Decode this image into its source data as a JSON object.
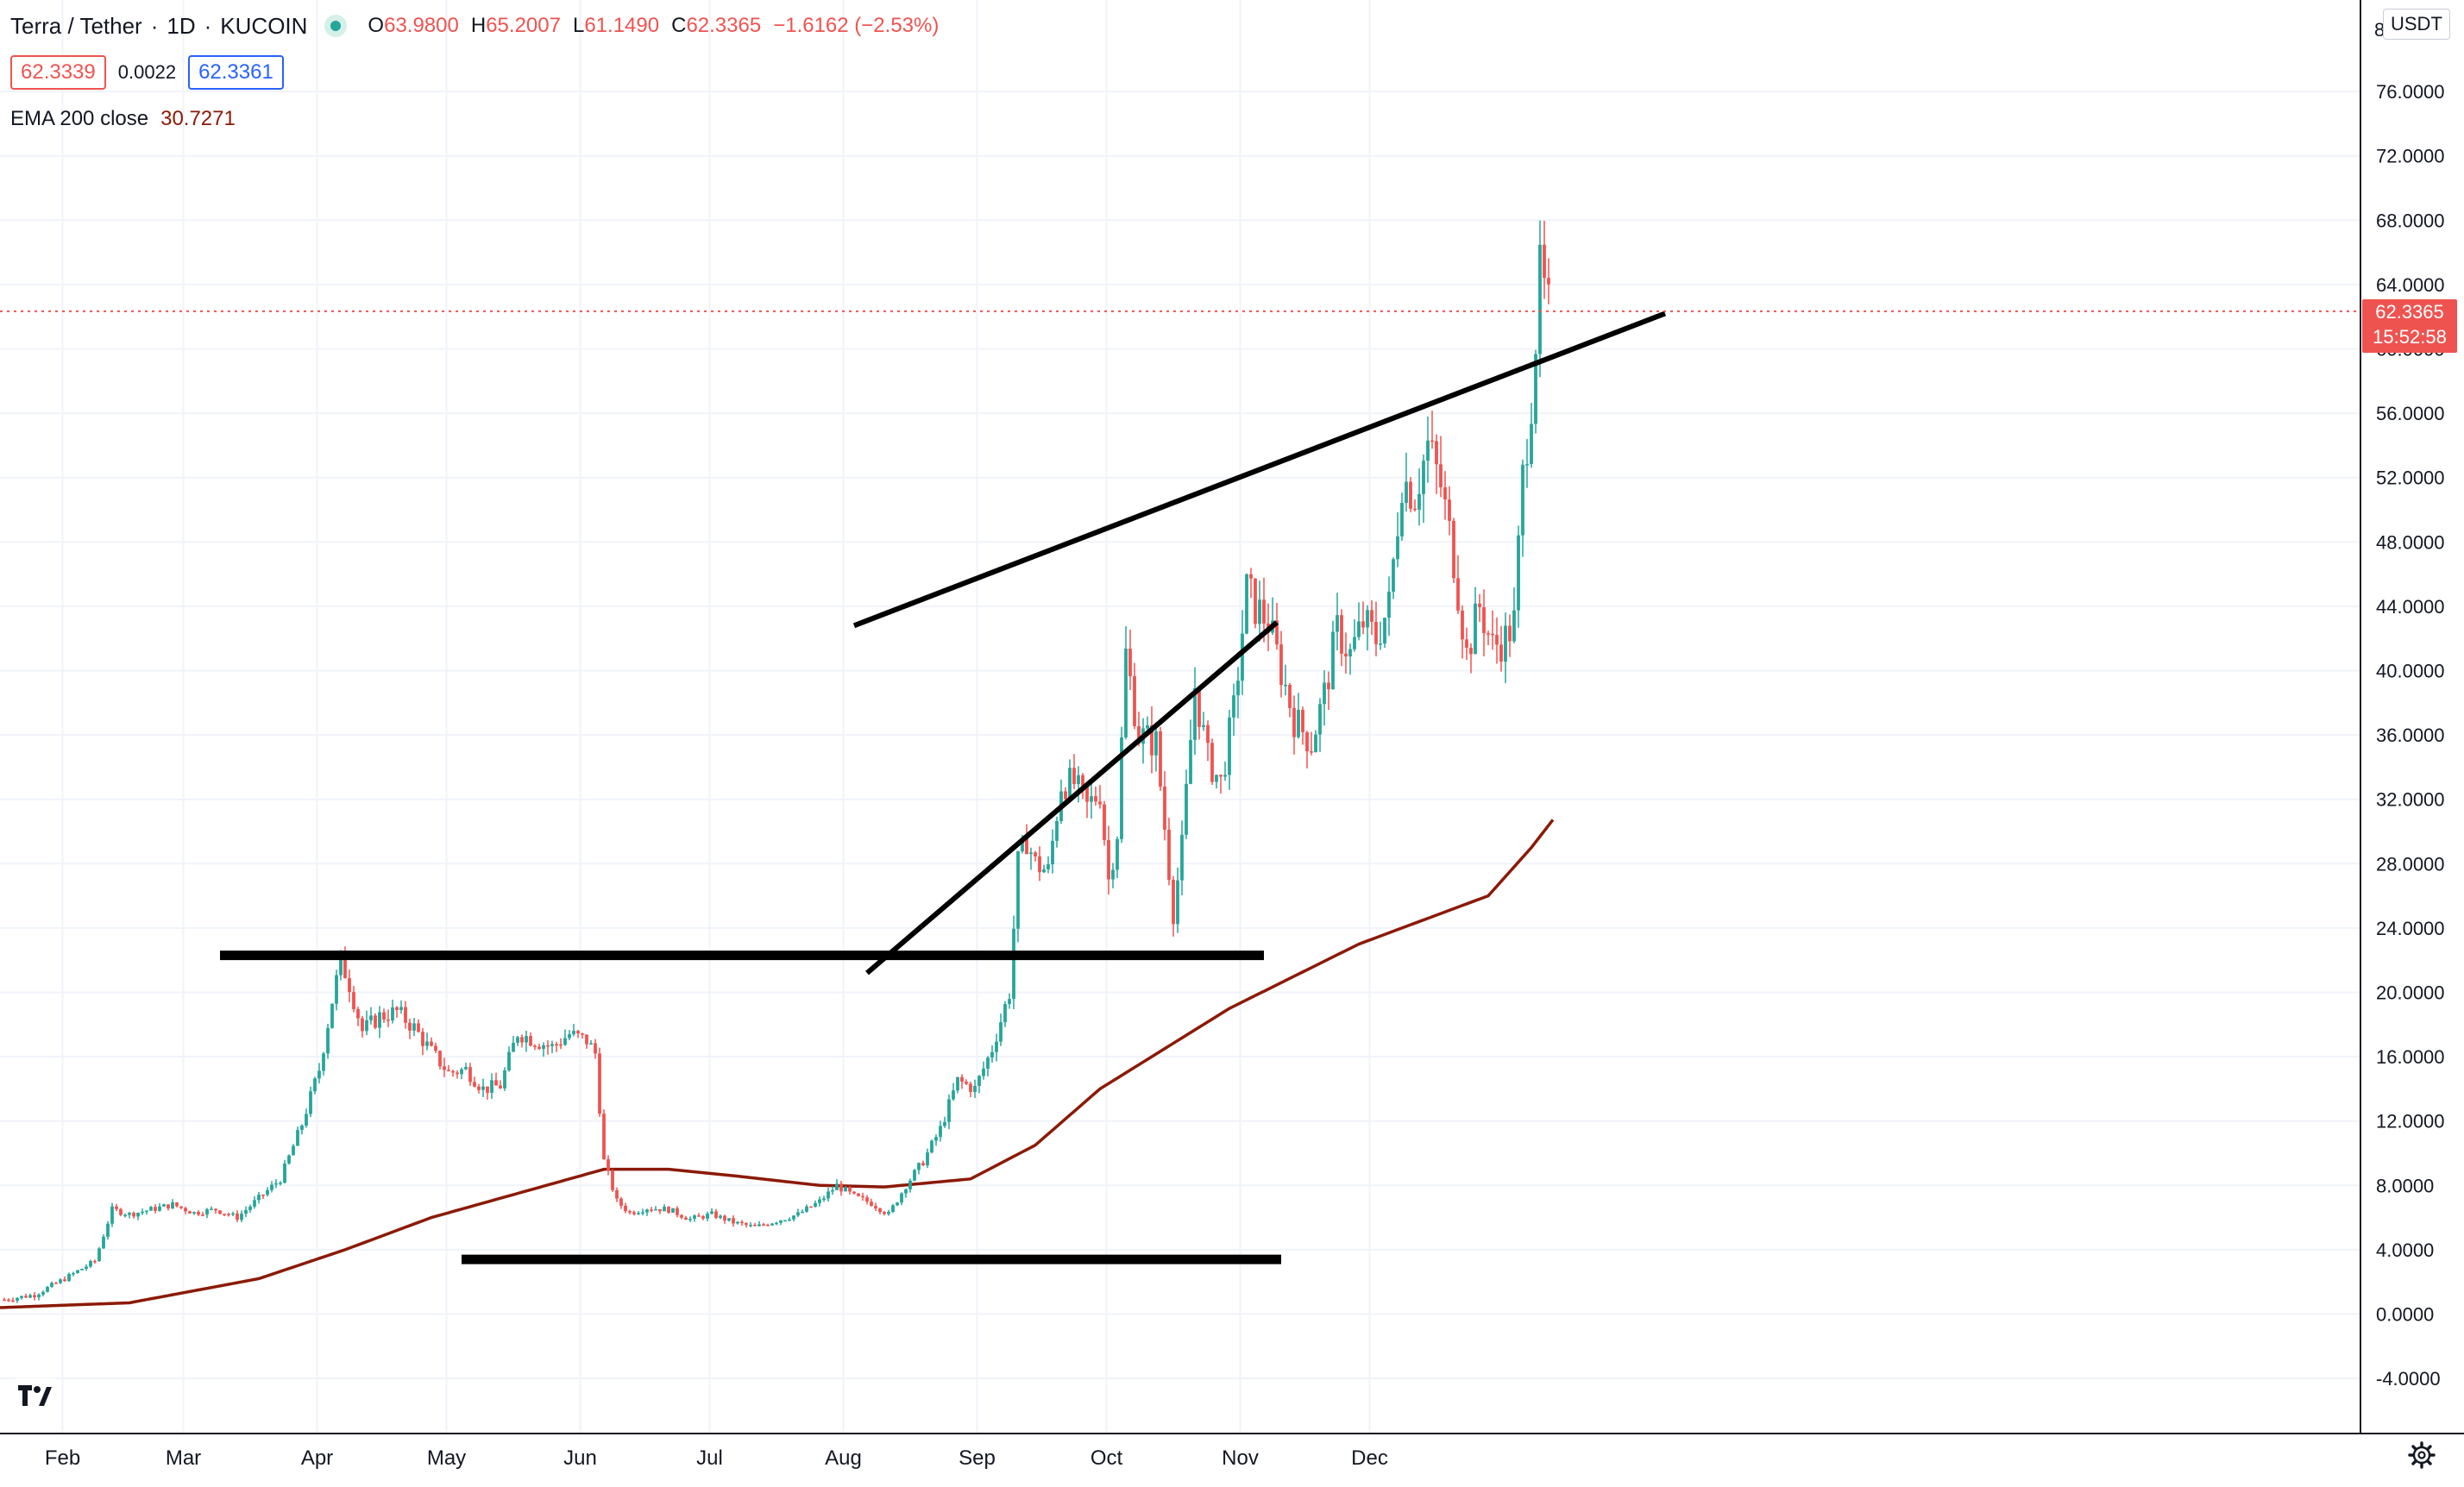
{
  "header": {
    "symbol": "Terra / Tether",
    "interval": "1D",
    "exchange": "KUCOIN",
    "ohlc": {
      "open_key": "O",
      "open": "63.9800",
      "high_key": "H",
      "high": "65.2007",
      "low_key": "L",
      "low": "61.1490",
      "close_key": "C",
      "close": "62.3365",
      "change": "−1.6162 (−2.53%)"
    }
  },
  "quote": {
    "sell": "62.3339",
    "spread": "0.0022",
    "buy": "62.3361"
  },
  "indicator": {
    "name": "EMA 200 close",
    "value": "30.7271"
  },
  "price_axis": {
    "unit": "USDT",
    "last_price": "62.3365",
    "countdown": "15:52:58",
    "top_partial": "8"
  },
  "colors": {
    "up": "#26a69a",
    "down": "#ef5350",
    "ema": "#8b1a06",
    "trendline": "#000000",
    "grid": "#f0f3fa"
  },
  "icons": {
    "logo": "tradingview-logo-icon",
    "settings": "gear-icon"
  },
  "chart_data": {
    "type": "candlestick",
    "title": "",
    "y_ticks": [
      "-4.0000",
      "0.0000",
      "4.0000",
      "8.0000",
      "12.0000",
      "16.0000",
      "20.0000",
      "24.0000",
      "28.0000",
      "32.0000",
      "36.0000",
      "40.0000",
      "44.0000",
      "48.0000",
      "52.0000",
      "56.0000",
      "60.0000",
      "64.0000",
      "68.0000",
      "72.0000",
      "76.0000"
    ],
    "x_labels": [
      "Feb",
      "Mar",
      "Apr",
      "May",
      "Jun",
      "Jul",
      "Aug",
      "Sep",
      "Oct",
      "Nov",
      "Dec"
    ],
    "ylim": [
      -6,
      84
    ],
    "grid": true,
    "price_path": [
      [
        1,
        0.9
      ],
      [
        8,
        1.2
      ],
      [
        15,
        2.2
      ],
      [
        22,
        3.3
      ],
      [
        26,
        6.5
      ],
      [
        30,
        6.2
      ],
      [
        35,
        6.5
      ],
      [
        40,
        6.8
      ],
      [
        45,
        6.3
      ],
      [
        50,
        6.5
      ],
      [
        55,
        6.0
      ],
      [
        60,
        7.2
      ],
      [
        65,
        8.4
      ],
      [
        70,
        11.8
      ],
      [
        74,
        15.2
      ],
      [
        77,
        19.5
      ],
      [
        79,
        22.0
      ],
      [
        81,
        20.5
      ],
      [
        84,
        17.6
      ],
      [
        88,
        18.5
      ],
      [
        92,
        18.8
      ],
      [
        96,
        17.8
      ],
      [
        100,
        16.3
      ],
      [
        104,
        15.0
      ],
      [
        108,
        15.2
      ],
      [
        112,
        14.0
      ],
      [
        116,
        14.2
      ],
      [
        120,
        17.5
      ],
      [
        124,
        17.0
      ],
      [
        128,
        16.6
      ],
      [
        132,
        17.4
      ],
      [
        136,
        17.0
      ],
      [
        138,
        16.2
      ],
      [
        140,
        9.5
      ],
      [
        143,
        7.0
      ],
      [
        146,
        6.3
      ],
      [
        150,
        6.6
      ],
      [
        155,
        6.5
      ],
      [
        160,
        5.9
      ],
      [
        165,
        6.2
      ],
      [
        170,
        5.7
      ],
      [
        175,
        5.4
      ],
      [
        180,
        5.8
      ],
      [
        185,
        6.2
      ],
      [
        190,
        7.0
      ],
      [
        194,
        8.0
      ],
      [
        198,
        7.3
      ],
      [
        202,
        6.9
      ],
      [
        206,
        6.2
      ],
      [
        210,
        8.0
      ],
      [
        214,
        9.5
      ],
      [
        218,
        11.5
      ],
      [
        222,
        14.5
      ],
      [
        226,
        14.0
      ],
      [
        230,
        16.5
      ],
      [
        234,
        20.0
      ],
      [
        236,
        28.0
      ],
      [
        238,
        29.5
      ],
      [
        240,
        28.0
      ],
      [
        243,
        27.5
      ],
      [
        246,
        33.0
      ],
      [
        249,
        33.0
      ],
      [
        252,
        31.5
      ],
      [
        255,
        32.5
      ],
      [
        257,
        27.0
      ],
      [
        259,
        30.0
      ],
      [
        261,
        41.0
      ],
      [
        264,
        36.0
      ],
      [
        268,
        35.5
      ],
      [
        272,
        25.0
      ],
      [
        274,
        29.0
      ],
      [
        277,
        39.0
      ],
      [
        280,
        34.5
      ],
      [
        283,
        33.0
      ],
      [
        286,
        37.5
      ],
      [
        289,
        45.0
      ],
      [
        291,
        44.0
      ],
      [
        294,
        43.0
      ],
      [
        297,
        40.0
      ],
      [
        300,
        37.0
      ],
      [
        304,
        35.5
      ],
      [
        307,
        38.5
      ],
      [
        310,
        42.5
      ],
      [
        313,
        41.0
      ],
      [
        316,
        43.0
      ],
      [
        319,
        42.0
      ],
      [
        322,
        44.0
      ],
      [
        325,
        52.0
      ],
      [
        328,
        51.0
      ],
      [
        331,
        54.0
      ],
      [
        334,
        51.5
      ],
      [
        337,
        47.0
      ],
      [
        340,
        41.0
      ],
      [
        343,
        44.0
      ],
      [
        346,
        41.5
      ],
      [
        349,
        42.0
      ],
      [
        351,
        43.0
      ],
      [
        353,
        52.0
      ],
      [
        355,
        57.0
      ],
      [
        357,
        64.5
      ],
      [
        359,
        62.34
      ]
    ],
    "ema_200": [
      [
        0,
        0.4
      ],
      [
        30,
        0.7
      ],
      [
        60,
        2.2
      ],
      [
        80,
        4.0
      ],
      [
        100,
        6.0
      ],
      [
        120,
        7.5
      ],
      [
        140,
        9.0
      ],
      [
        155,
        9.0
      ],
      [
        170,
        8.6
      ],
      [
        190,
        8.0
      ],
      [
        205,
        7.9
      ],
      [
        225,
        8.4
      ],
      [
        240,
        10.5
      ],
      [
        255,
        14.0
      ],
      [
        270,
        16.5
      ],
      [
        285,
        19.0
      ],
      [
        300,
        21.0
      ],
      [
        315,
        23.0
      ],
      [
        330,
        24.5
      ],
      [
        345,
        26.0
      ],
      [
        355,
        29.0
      ],
      [
        360,
        30.73
      ]
    ],
    "annotations": {
      "upper_channel": [
        [
          259,
          42.8
        ],
        [
          362,
          62.2
        ]
      ],
      "lower_channel": [
        [
          259,
          22.0
        ],
        [
          373,
          43.0
        ]
      ],
      "resistance_hline": {
        "x": [
          79,
          373
        ],
        "y": 22.3
      },
      "support_hline": {
        "x": [
          141,
          373
        ],
        "y": 3.4
      }
    }
  }
}
